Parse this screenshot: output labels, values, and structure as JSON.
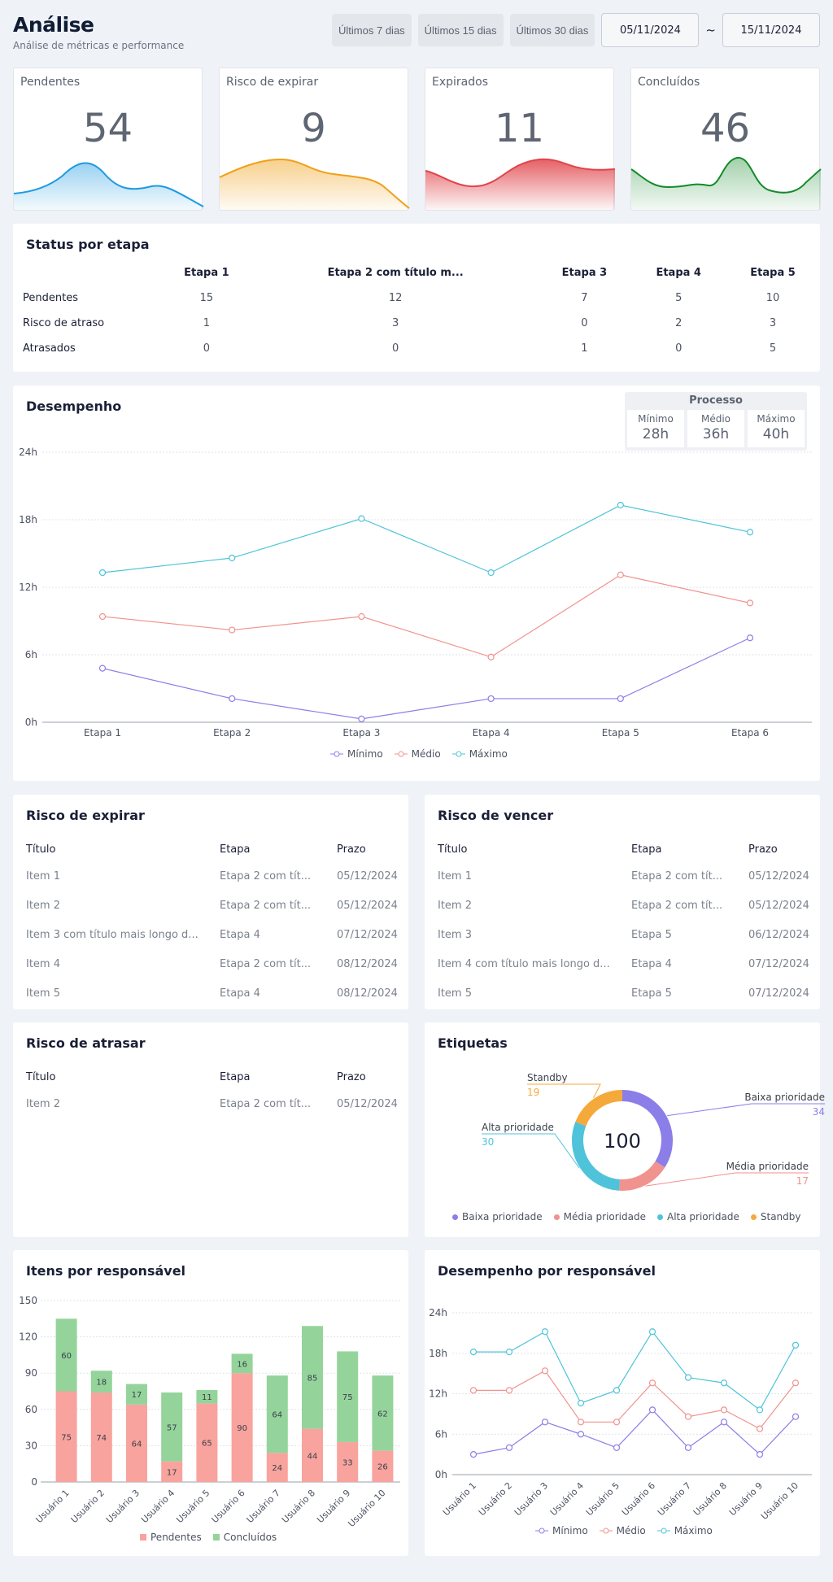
{
  "header": {
    "title": "Análise",
    "subtitle": "Análise de métricas e performance",
    "ranges": [
      "Últimos 7 dias",
      "Últimos 15 dias",
      "Últimos 30 dias"
    ],
    "date_from": "05/11/2024",
    "date_sep": "~",
    "date_to": "15/11/2024"
  },
  "kpis": [
    {
      "label": "Pendentes",
      "value": "54",
      "color": "#1e9ae0"
    },
    {
      "label": "Risco de expirar",
      "value": "9",
      "color": "#f0a018"
    },
    {
      "label": "Expirados",
      "value": "11",
      "color": "#e0444a"
    },
    {
      "label": "Concluídos",
      "value": "46",
      "color": "#158a2a"
    }
  ],
  "status": {
    "title": "Status por etapa",
    "columns": [
      "Etapa 1",
      "Etapa 2 com título m...",
      "Etapa 3",
      "Etapa 4",
      "Etapa 5"
    ],
    "rows": [
      {
        "label": "Pendentes",
        "values": [
          "15",
          "12",
          "7",
          "5",
          "10"
        ]
      },
      {
        "label": "Risco de atraso",
        "values": [
          "1",
          "3",
          "0",
          "2",
          "3"
        ]
      },
      {
        "label": "Atrasados",
        "values": [
          "0",
          "0",
          "1",
          "0",
          "5"
        ]
      }
    ]
  },
  "desempenho": {
    "title": "Desempenho",
    "processo": {
      "title": "Processo",
      "cells": [
        {
          "label": "Mínimo",
          "value": "28h"
        },
        {
          "label": "Médio",
          "value": "36h"
        },
        {
          "label": "Máximo",
          "value": "40h"
        }
      ]
    },
    "legend": [
      "Mínimo",
      "Médio",
      "Máximo"
    ]
  },
  "risco_expirar": {
    "title": "Risco de expirar",
    "headers": [
      "Título",
      "Etapa",
      "Prazo"
    ],
    "rows": [
      [
        "Item 1",
        "Etapa 2 com tít...",
        "05/12/2024"
      ],
      [
        "Item 2",
        "Etapa 2 com tít...",
        "05/12/2024"
      ],
      [
        "Item 3 com título mais longo d...",
        "Etapa 4",
        "07/12/2024"
      ],
      [
        "Item 4",
        "Etapa 2 com tít...",
        "08/12/2024"
      ],
      [
        "Item 5",
        "Etapa 4",
        "08/12/2024"
      ]
    ]
  },
  "risco_vencer": {
    "title": "Risco de vencer",
    "headers": [
      "Título",
      "Etapa",
      "Prazo"
    ],
    "rows": [
      [
        "Item 1",
        "Etapa 2 com tít...",
        "05/12/2024"
      ],
      [
        "Item 2",
        "Etapa 2 com tít...",
        "05/12/2024"
      ],
      [
        "Item 3",
        "Etapa 5",
        "06/12/2024"
      ],
      [
        "Item 4 com título mais longo d...",
        "Etapa 4",
        "07/12/2024"
      ],
      [
        "Item 5",
        "Etapa 5",
        "07/12/2024"
      ]
    ]
  },
  "risco_atrasar": {
    "title": "Risco de atrasar",
    "headers": [
      "Título",
      "Etapa",
      "Prazo"
    ],
    "rows": [
      [
        "Item 2",
        "Etapa 2 com tít...",
        "05/12/2024"
      ]
    ]
  },
  "etiquetas": {
    "title": "Etiquetas",
    "total": "100"
  },
  "itens_resp": {
    "title": "Itens por responsável",
    "legend": [
      "Pendentes",
      "Concluídos"
    ]
  },
  "desemp_resp": {
    "title": "Desempenho por responsável",
    "legend": [
      "Mínimo",
      "Médio",
      "Máximo"
    ]
  },
  "colors": {
    "min": "#8b7ee8",
    "med": "#f0928e",
    "max": "#4fc3d9",
    "pend": "#f8a39d",
    "concl": "#94d49b",
    "standby": "#f5a93b"
  },
  "chart_data": [
    {
      "type": "line",
      "categories": [
        "Etapa 1",
        "Etapa 2",
        "Etapa 3",
        "Etapa 4",
        "Etapa 5",
        "Etapa 6"
      ],
      "ylim": [
        0,
        24
      ],
      "yticks": [
        "0h",
        "6h",
        "12h",
        "18h",
        "24h"
      ],
      "series": [
        {
          "name": "Mínimo",
          "values": [
            4.8,
            2.1,
            0.3,
            2.1,
            2.1,
            7.5
          ]
        },
        {
          "name": "Médio",
          "values": [
            9.4,
            8.2,
            9.4,
            5.8,
            13.1,
            10.6
          ]
        },
        {
          "name": "Máximo",
          "values": [
            13.3,
            14.6,
            18.1,
            13.3,
            19.3,
            16.9
          ]
        }
      ]
    },
    {
      "type": "pie",
      "categories": [
        "Baixa prioridade",
        "Média prioridade",
        "Alta prioridade",
        "Standby"
      ],
      "values": [
        34,
        17,
        30,
        19
      ]
    },
    {
      "type": "bar",
      "categories": [
        "Usuário 1",
        "Usuário 2",
        "Usuário 3",
        "Usuário 4",
        "Usuário 5",
        "Usuário 6",
        "Usuário 7",
        "Usuário 8",
        "Usuário 9",
        "Usuário 10"
      ],
      "ylim": [
        0,
        150
      ],
      "yticks": [
        "0",
        "30",
        "60",
        "90",
        "120",
        "150"
      ],
      "series": [
        {
          "name": "Pendentes",
          "values": [
            75,
            74,
            64,
            17,
            65,
            90,
            24,
            44,
            33,
            26
          ]
        },
        {
          "name": "Concluídos",
          "values": [
            60,
            18,
            17,
            57,
            11,
            16,
            64,
            85,
            75,
            62
          ]
        }
      ]
    },
    {
      "type": "line",
      "categories": [
        "Usuário 1",
        "Usuário 2",
        "Usuário 3",
        "Usuário 4",
        "Usuário 5",
        "Usuário 6",
        "Usuário 7",
        "Usuário 8",
        "Usuário 9",
        "Usuário 10"
      ],
      "ylim": [
        0,
        24
      ],
      "yticks": [
        "0h",
        "6h",
        "12h",
        "18h",
        "24h"
      ],
      "series": [
        {
          "name": "Mínimo",
          "values": [
            3,
            4,
            7.8,
            6,
            4,
            9.6,
            4,
            7.8,
            3,
            8.6
          ]
        },
        {
          "name": "Médio",
          "values": [
            12.5,
            12.5,
            15.4,
            7.8,
            7.8,
            13.6,
            8.6,
            9.6,
            6.8,
            13.6
          ]
        },
        {
          "name": "Máximo",
          "values": [
            18.2,
            18.2,
            21.2,
            10.6,
            12.5,
            21.2,
            14.4,
            13.6,
            9.6,
            19.2
          ]
        }
      ]
    }
  ]
}
